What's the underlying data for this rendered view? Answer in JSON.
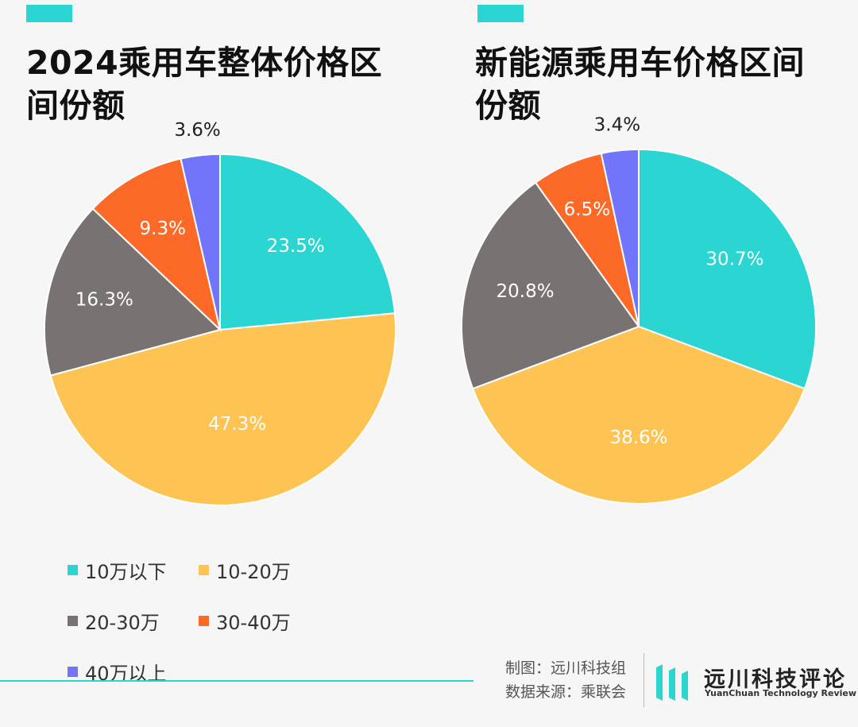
{
  "colors": {
    "accent": "#2bd6d2",
    "background": "#f6f6f6"
  },
  "legend": [
    {
      "label": "10万以下",
      "color": "#2bd6d2"
    },
    {
      "label": "10-20万",
      "color": "#fdc353"
    },
    {
      "label": "20-30万",
      "color": "#787272"
    },
    {
      "label": "30-40万",
      "color": "#fd6a28"
    },
    {
      "label": "40万以上",
      "color": "#7175fb"
    }
  ],
  "chart_data": [
    {
      "type": "pie",
      "title": "2024乘用车整体价格区间份额",
      "categories": [
        "10万以下",
        "10-20万",
        "20-30万",
        "30-40万",
        "40万以上"
      ],
      "values": [
        23.5,
        47.3,
        16.3,
        9.3,
        3.6
      ],
      "labels": [
        "23.5%",
        "47.3%",
        "16.3%",
        "9.3%",
        "3.6%"
      ],
      "start_angle": "12 o'clock",
      "direction": "clockwise"
    },
    {
      "type": "pie",
      "title": "新能源乘用车价格区间份额",
      "categories": [
        "10万以下",
        "10-20万",
        "20-30万",
        "30-40万",
        "40万以上"
      ],
      "values": [
        30.7,
        38.6,
        20.8,
        6.5,
        3.4
      ],
      "labels": [
        "30.7%",
        "38.6%",
        "20.8%",
        "6.5%",
        "3.4%"
      ],
      "start_angle": "12 o'clock",
      "direction": "clockwise"
    }
  ],
  "footer": {
    "credit_chart": "制图：远川科技组",
    "credit_source": "数据来源：乘联会",
    "brand_name": "远川科技评论",
    "brand_sub": "YuanChuan Technology Review"
  }
}
